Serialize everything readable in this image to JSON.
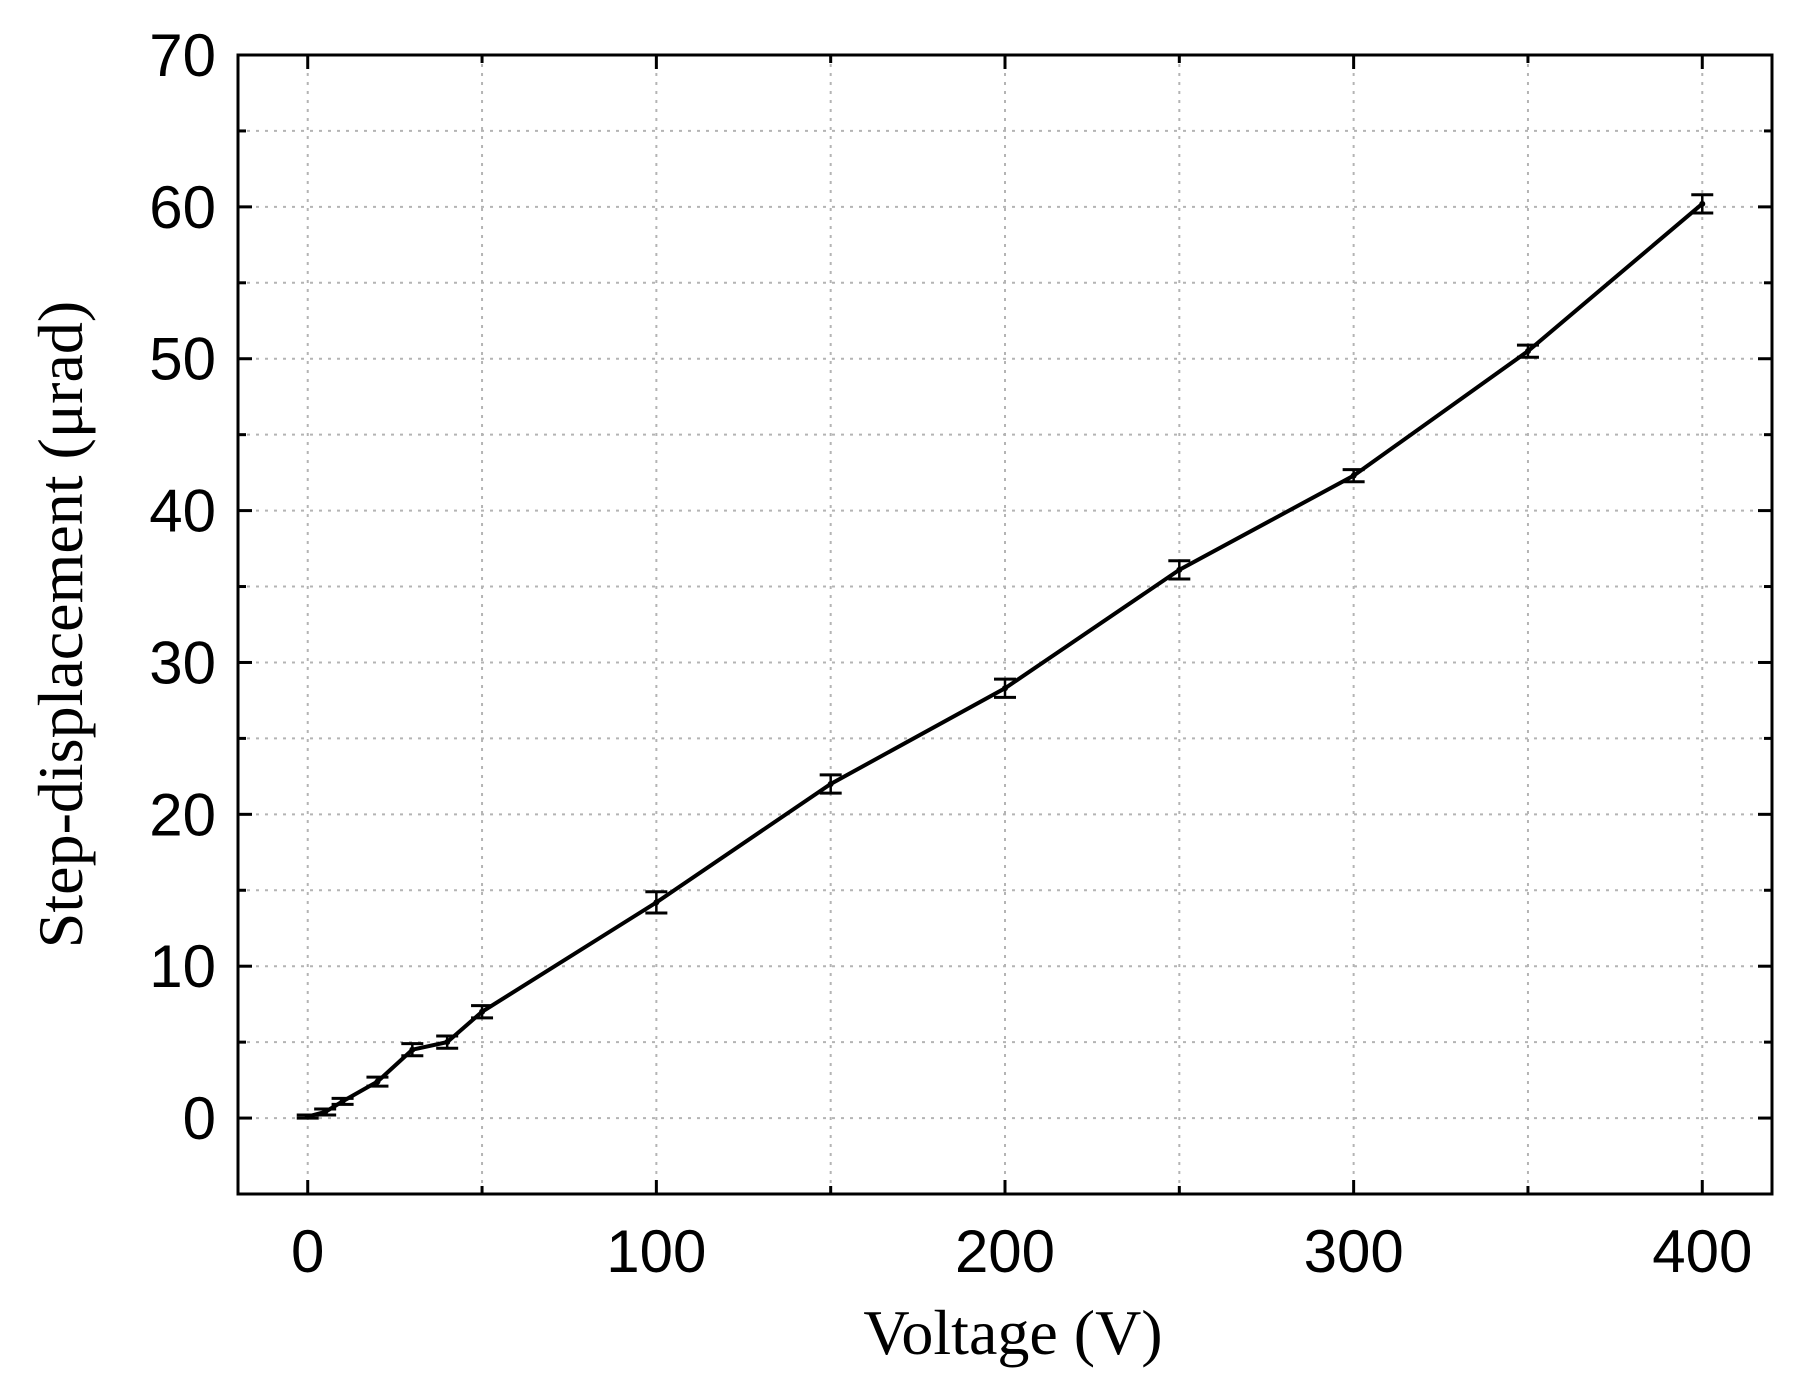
{
  "chart_data": {
    "type": "line",
    "title": "",
    "xlabel": "Voltage (V)",
    "ylabel": "Step-displacement (μrad)",
    "xlim": [
      -20,
      420
    ],
    "ylim": [
      -5,
      70
    ],
    "xticks": [
      0,
      100,
      200,
      300,
      400
    ],
    "yticks": [
      0,
      10,
      20,
      30,
      40,
      50,
      60,
      70
    ],
    "grid": true,
    "legend": "none",
    "series": [
      {
        "x": [
          0,
          5,
          10,
          20,
          30,
          40,
          50,
          100,
          150,
          200,
          250,
          300,
          350,
          400
        ],
        "y": [
          0.1,
          0.4,
          1.1,
          2.4,
          4.5,
          5.0,
          7.0,
          14.2,
          22.0,
          28.3,
          36.1,
          42.3,
          50.5,
          60.2
        ],
        "err": [
          0.1,
          0.2,
          0.2,
          0.3,
          0.4,
          0.4,
          0.4,
          0.7,
          0.6,
          0.6,
          0.6,
          0.4,
          0.4,
          0.6
        ]
      }
    ],
    "colors": {
      "line": "#000000",
      "grid": "#b4b4b4"
    }
  }
}
